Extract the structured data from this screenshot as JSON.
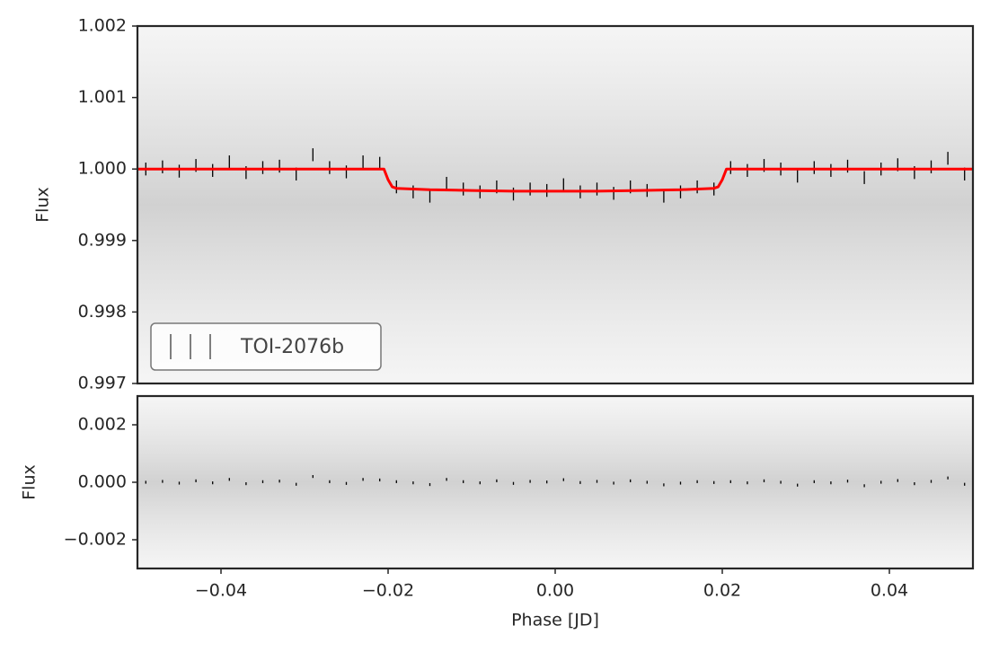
{
  "chart_data": [
    {
      "type": "errorbar",
      "ylabel": "Flux",
      "xlim": [
        -0.05,
        0.05
      ],
      "ylim": [
        0.997,
        1.002
      ],
      "yticks": [
        {
          "value": 0.997,
          "label": "0.997"
        },
        {
          "value": 0.998,
          "label": "0.998"
        },
        {
          "value": 0.999,
          "label": "0.999"
        },
        {
          "value": 1.0,
          "label": "1.000"
        },
        {
          "value": 1.001,
          "label": "1.001"
        },
        {
          "value": 1.002,
          "label": "1.002"
        }
      ],
      "legend": "lower left",
      "series": [
        {
          "name": "TOI-2076b",
          "color": "#000000",
          "x": [
            -0.049,
            -0.047,
            -0.045,
            -0.043,
            -0.041,
            -0.039,
            -0.037,
            -0.035,
            -0.033,
            -0.031,
            -0.029,
            -0.027,
            -0.025,
            -0.023,
            -0.021,
            -0.019,
            -0.017,
            -0.015,
            -0.013,
            -0.011,
            -0.009,
            -0.007,
            -0.005,
            -0.003,
            -0.001,
            0.001,
            0.003,
            0.005,
            0.007,
            0.009,
            0.011,
            0.013,
            0.015,
            0.017,
            0.019,
            0.021,
            0.023,
            0.025,
            0.027,
            0.029,
            0.031,
            0.033,
            0.035,
            0.037,
            0.039,
            0.041,
            0.043,
            0.045,
            0.047,
            0.049
          ],
          "values": [
            1.0,
            1.00003,
            0.99997,
            1.00005,
            0.99998,
            1.0001,
            0.99995,
            1.00002,
            1.00004,
            0.99993,
            1.0002,
            1.00002,
            0.99996,
            1.0001,
            1.00008,
            0.99975,
            0.99968,
            0.99962,
            0.9998,
            0.99972,
            0.99968,
            0.99975,
            0.99965,
            0.99972,
            0.9997,
            0.99978,
            0.99968,
            0.99972,
            0.99966,
            0.99975,
            0.9997,
            0.99962,
            0.99968,
            0.99975,
            0.99972,
            1.00002,
            0.99998,
            1.00005,
            1.0,
            0.9999,
            1.00002,
            0.99998,
            1.00004,
            0.99988,
            1.0,
            1.00006,
            0.99995,
            1.00003,
            1.00015,
            0.99993
          ],
          "errors": [
            9e-05,
            9e-05,
            9e-05,
            9e-05,
            9e-05,
            9e-05,
            9e-05,
            9e-05,
            9e-05,
            9e-05,
            9e-05,
            9e-05,
            9e-05,
            9e-05,
            9e-05,
            9e-05,
            9e-05,
            9e-05,
            9e-05,
            9e-05,
            9e-05,
            9e-05,
            9e-05,
            9e-05,
            9e-05,
            9e-05,
            9e-05,
            9e-05,
            9e-05,
            9e-05,
            9e-05,
            9e-05,
            9e-05,
            9e-05,
            9e-05,
            9e-05,
            9e-05,
            9e-05,
            9e-05,
            9e-05,
            9e-05,
            9e-05,
            9e-05,
            9e-05,
            9e-05,
            9e-05,
            9e-05,
            9e-05,
            9e-05,
            9e-05
          ]
        },
        {
          "type": "line",
          "color": "#ff0000",
          "x": [
            -0.05,
            -0.0205,
            -0.02,
            -0.0195,
            -0.019,
            -0.015,
            -0.01,
            -0.005,
            0,
            0.005,
            0.01,
            0.015,
            0.019,
            0.0195,
            0.02,
            0.0205,
            0.05
          ],
          "values": [
            1.0,
            1.0,
            0.99985,
            0.99975,
            0.99973,
            0.99971,
            0.9997,
            0.99969,
            0.99969,
            0.99969,
            0.9997,
            0.99971,
            0.99973,
            0.99975,
            0.99985,
            1.0,
            1.0
          ]
        }
      ]
    },
    {
      "type": "errorbar",
      "ylabel": "Flux",
      "xlabel": "Phase [JD]",
      "xlim": [
        -0.05,
        0.05
      ],
      "ylim": [
        -0.003,
        0.003
      ],
      "xticks": [
        {
          "value": -0.04,
          "label": "−0.04"
        },
        {
          "value": -0.02,
          "label": "−0.02"
        },
        {
          "value": 0,
          "label": "0.00"
        },
        {
          "value": 0.02,
          "label": "0.02"
        },
        {
          "value": 0.04,
          "label": "0.04"
        }
      ],
      "yticks": [
        {
          "value": -0.002,
          "label": "−0.002"
        },
        {
          "value": 0,
          "label": "0.000"
        },
        {
          "value": 0.002,
          "label": "0.002"
        }
      ],
      "series": [
        {
          "color": "#000000",
          "x": [
            -0.049,
            -0.047,
            -0.045,
            -0.043,
            -0.041,
            -0.039,
            -0.037,
            -0.035,
            -0.033,
            -0.031,
            -0.029,
            -0.027,
            -0.025,
            -0.023,
            -0.021,
            -0.019,
            -0.017,
            -0.015,
            -0.013,
            -0.011,
            -0.009,
            -0.007,
            -0.005,
            -0.003,
            -0.001,
            0.001,
            0.003,
            0.005,
            0.007,
            0.009,
            0.011,
            0.013,
            0.015,
            0.017,
            0.019,
            0.021,
            0.023,
            0.025,
            0.027,
            0.029,
            0.031,
            0.033,
            0.035,
            0.037,
            0.039,
            0.041,
            0.043,
            0.045,
            0.047,
            0.049
          ],
          "values": [
            0.0,
            3e-05,
            -3e-05,
            5e-05,
            -2e-05,
            0.0001,
            -5e-05,
            2e-05,
            4e-05,
            -7e-05,
            0.0002,
            2e-05,
            -4e-05,
            0.0001,
            8e-05,
            2e-05,
            -2e-05,
            -8e-05,
            0.0001,
            2e-05,
            -2e-05,
            5e-05,
            -4e-05,
            3e-05,
            1e-05,
            9e-05,
            -1e-05,
            3e-05,
            -3e-05,
            5e-05,
            0.0,
            -9e-05,
            -3e-05,
            2e-05,
            -1e-05,
            2e-05,
            -2e-05,
            5e-05,
            0.0,
            -0.0001,
            2e-05,
            -2e-05,
            4e-05,
            -0.00012,
            0.0,
            6e-05,
            -5e-05,
            3e-05,
            0.00015,
            -7e-05
          ],
          "errors": [
            5e-05,
            5e-05,
            5e-05,
            5e-05,
            5e-05,
            5e-05,
            5e-05,
            5e-05,
            5e-05,
            5e-05,
            5e-05,
            5e-05,
            5e-05,
            5e-05,
            5e-05,
            5e-05,
            5e-05,
            5e-05,
            5e-05,
            5e-05,
            5e-05,
            5e-05,
            5e-05,
            5e-05,
            5e-05,
            5e-05,
            5e-05,
            5e-05,
            5e-05,
            5e-05,
            5e-05,
            5e-05,
            5e-05,
            5e-05,
            5e-05,
            5e-05,
            5e-05,
            5e-05,
            5e-05,
            5e-05,
            5e-05,
            5e-05,
            5e-05,
            5e-05,
            5e-05,
            5e-05,
            5e-05,
            5e-05,
            5e-05,
            5e-05
          ]
        }
      ]
    }
  ]
}
